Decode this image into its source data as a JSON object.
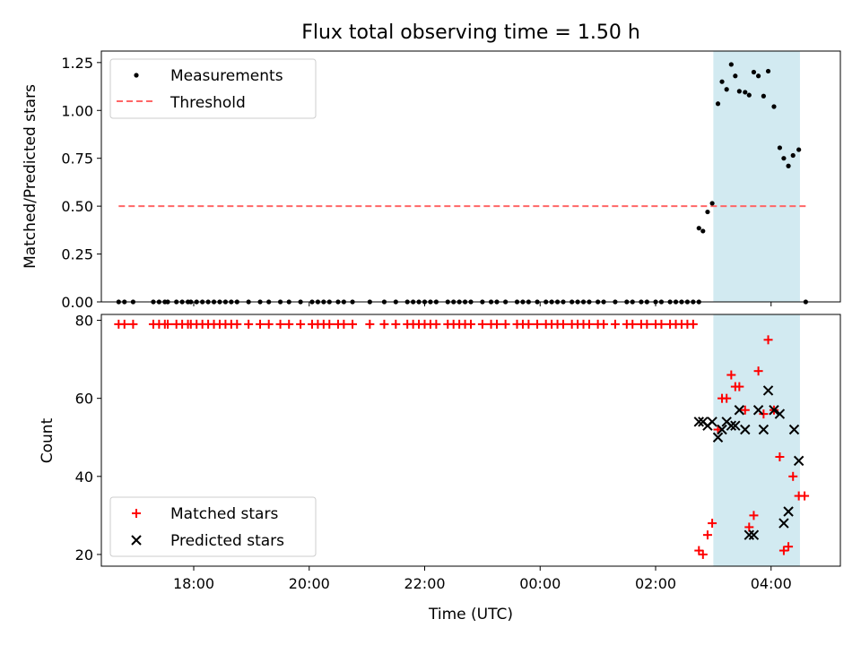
{
  "chart_data": {
    "type": "scatter",
    "title": "Flux total observing time = 1.50 h",
    "shared_xlabel": "Time (UTC)",
    "x_units": "hours since 00:00 UTC",
    "xlim": [
      -7.6,
      5.2
    ],
    "x_ticks": [
      -6,
      -4,
      -2,
      0,
      2,
      4
    ],
    "x_tick_labels": [
      "18:00",
      "20:00",
      "22:00",
      "00:00",
      "02:00",
      "04:00"
    ],
    "observing_window": [
      3.0,
      4.5
    ],
    "colors": {
      "window": "#add8e6",
      "threshold": "#ff6666",
      "matched": "#ff0000",
      "predicted": "#000000",
      "measurement": "#000000"
    },
    "top": {
      "ylabel": "Matched/Predicted stars",
      "ylim": [
        0,
        1.31
      ],
      "y_ticks": [
        0,
        0.25,
        0.5,
        0.75,
        1.0,
        1.25
      ],
      "y_tick_labels": [
        "0.00",
        "0.25",
        "0.50",
        "0.75",
        "1.00",
        "1.25"
      ],
      "legend": [
        "Measurements",
        "Threshold"
      ],
      "threshold": {
        "value": 0.5,
        "x_range": [
          -7.3,
          4.6
        ]
      },
      "measurements_zero_x": [
        -7.3,
        -7.2,
        -7.05,
        -6.7,
        -6.6,
        -6.5,
        -6.45,
        -6.3,
        -6.2,
        -6.1,
        -6.05,
        -5.95,
        -5.85,
        -5.75,
        -5.65,
        -5.55,
        -5.45,
        -5.35,
        -5.25,
        -5.05,
        -4.85,
        -4.7,
        -4.5,
        -4.35,
        -4.15,
        -3.95,
        -3.85,
        -3.75,
        -3.65,
        -3.5,
        -3.4,
        -3.25,
        -2.95,
        -2.7,
        -2.5,
        -2.3,
        -2.2,
        -2.1,
        -2.0,
        -1.9,
        -1.8,
        -1.6,
        -1.5,
        -1.4,
        -1.3,
        -1.2,
        -1.0,
        -0.85,
        -0.75,
        -0.6,
        -0.4,
        -0.3,
        -0.2,
        -0.05,
        0.1,
        0.2,
        0.3,
        0.4,
        0.55,
        0.65,
        0.75,
        0.85,
        1.0,
        1.1,
        1.3,
        1.5,
        1.6,
        1.75,
        1.85,
        2.0,
        2.1,
        2.25,
        2.35,
        2.45,
        2.55,
        2.65,
        2.75,
        4.6
      ],
      "measurements": [
        [
          2.75,
          0.385
        ],
        [
          2.82,
          0.37
        ],
        [
          2.9,
          0.47
        ],
        [
          2.98,
          0.515
        ],
        [
          3.08,
          1.035
        ],
        [
          3.15,
          1.15
        ],
        [
          3.23,
          1.11
        ],
        [
          3.31,
          1.24
        ],
        [
          3.38,
          1.18
        ],
        [
          3.45,
          1.1
        ],
        [
          3.55,
          1.095
        ],
        [
          3.62,
          1.08
        ],
        [
          3.7,
          1.2
        ],
        [
          3.78,
          1.18
        ],
        [
          3.87,
          1.075
        ],
        [
          3.95,
          1.205
        ],
        [
          4.05,
          1.02
        ],
        [
          4.15,
          0.805
        ],
        [
          4.22,
          0.75
        ],
        [
          4.3,
          0.71
        ],
        [
          4.38,
          0.765
        ],
        [
          4.48,
          0.795
        ]
      ]
    },
    "bottom": {
      "ylabel": "Count",
      "ylim": [
        17,
        81.5
      ],
      "y_ticks": [
        20,
        40,
        60,
        80
      ],
      "y_tick_labels": [
        "20",
        "40",
        "60",
        "80"
      ],
      "legend": [
        "Matched stars",
        "Predicted stars"
      ],
      "matched_at_79_x": [
        -7.3,
        -7.2,
        -7.05,
        -6.7,
        -6.6,
        -6.5,
        -6.45,
        -6.3,
        -6.2,
        -6.1,
        -6.05,
        -5.95,
        -5.85,
        -5.75,
        -5.65,
        -5.55,
        -5.45,
        -5.35,
        -5.25,
        -5.05,
        -4.85,
        -4.7,
        -4.5,
        -4.35,
        -4.15,
        -3.95,
        -3.85,
        -3.75,
        -3.65,
        -3.5,
        -3.4,
        -3.25,
        -2.95,
        -2.7,
        -2.5,
        -2.3,
        -2.2,
        -2.1,
        -2.0,
        -1.9,
        -1.8,
        -1.6,
        -1.5,
        -1.4,
        -1.3,
        -1.2,
        -1.0,
        -0.85,
        -0.75,
        -0.6,
        -0.4,
        -0.3,
        -0.2,
        -0.05,
        0.1,
        0.2,
        0.3,
        0.4,
        0.55,
        0.65,
        0.75,
        0.85,
        1.0,
        1.1,
        1.3,
        1.5,
        1.6,
        1.75,
        1.85,
        2.0,
        2.1,
        2.25,
        2.35,
        2.45,
        2.55,
        2.65
      ],
      "matched_stars": [
        [
          2.75,
          21
        ],
        [
          2.82,
          20
        ],
        [
          2.9,
          25
        ],
        [
          2.98,
          28
        ],
        [
          3.08,
          52
        ],
        [
          3.15,
          60
        ],
        [
          3.23,
          60
        ],
        [
          3.31,
          66
        ],
        [
          3.38,
          63
        ],
        [
          3.45,
          63
        ],
        [
          3.55,
          57
        ],
        [
          3.62,
          27
        ],
        [
          3.7,
          30
        ],
        [
          3.78,
          67
        ],
        [
          3.87,
          56
        ],
        [
          3.95,
          75
        ],
        [
          4.05,
          57
        ],
        [
          4.15,
          45
        ],
        [
          4.22,
          21
        ],
        [
          4.3,
          22
        ],
        [
          4.38,
          40
        ],
        [
          4.48,
          35
        ],
        [
          4.58,
          35
        ]
      ],
      "predicted_stars": [
        [
          2.75,
          54
        ],
        [
          2.82,
          54
        ],
        [
          2.9,
          53
        ],
        [
          2.98,
          54
        ],
        [
          3.08,
          50
        ],
        [
          3.15,
          52
        ],
        [
          3.23,
          54
        ],
        [
          3.31,
          53
        ],
        [
          3.38,
          53
        ],
        [
          3.45,
          57
        ],
        [
          3.55,
          52
        ],
        [
          3.62,
          25
        ],
        [
          3.7,
          25
        ],
        [
          3.78,
          57
        ],
        [
          3.87,
          52
        ],
        [
          3.95,
          62
        ],
        [
          4.05,
          57
        ],
        [
          4.15,
          56
        ],
        [
          4.22,
          28
        ],
        [
          4.3,
          31
        ],
        [
          4.4,
          52
        ],
        [
          4.48,
          44
        ]
      ]
    }
  }
}
